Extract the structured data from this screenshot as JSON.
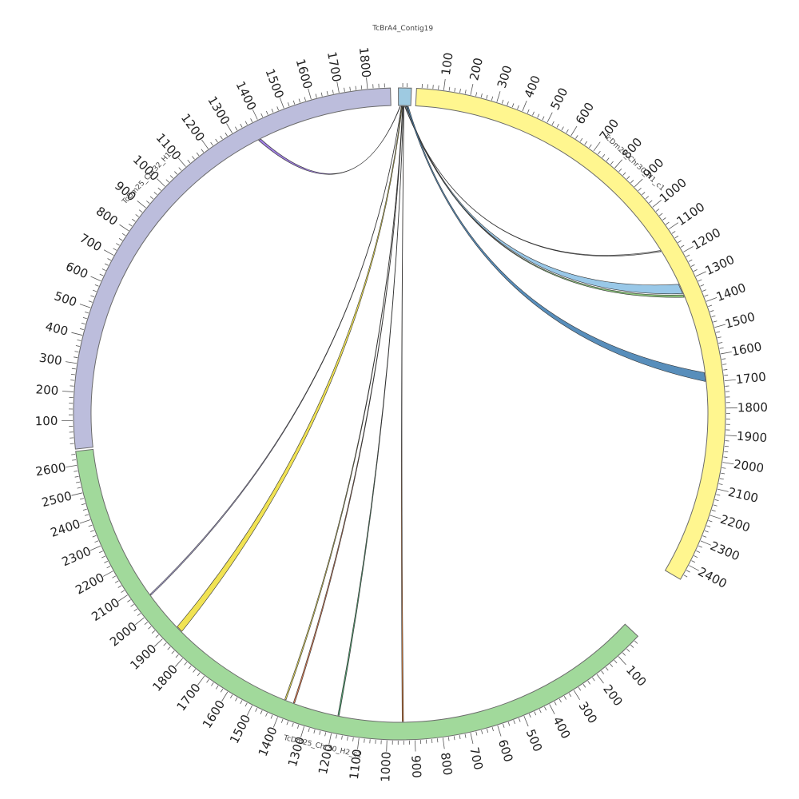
{
  "chart_data": {
    "type": "chord",
    "chromosomes": [
      {
        "id": "contig19",
        "name": "TcBrA4_Contig19",
        "length": 60,
        "start_deg": 359.8,
        "end_deg": 362.1,
        "color": "#9ecae1",
        "tick_step": 100,
        "labels": []
      },
      {
        "id": "h1c1",
        "name": "TcDm25_Chr30_H1_c1",
        "length": 2460,
        "start_deg": 363.0,
        "end_deg": 480.5,
        "color": "#fff68f",
        "tick_step": 100,
        "labels": [
          "100",
          "200",
          "300",
          "400",
          "500",
          "600",
          "700",
          "800",
          "900",
          "1000",
          "1100",
          "1200",
          "1300",
          "1400",
          "1500",
          "1600",
          "1700",
          "1800",
          "1900",
          "2000",
          "2100",
          "2200",
          "2300",
          "2400"
        ]
      },
      {
        "id": "h2c1",
        "name": "TcDm25_Chr30_H2_c1",
        "length": 2650,
        "start_deg": 493.0,
        "end_deg": 623.4,
        "color": "#a1d99b",
        "tick_step": 100,
        "labels": [
          "100",
          "200",
          "300",
          "400",
          "500",
          "600",
          "700",
          "800",
          "900",
          "1000",
          "1100",
          "1200",
          "1300",
          "1400",
          "1500",
          "1600",
          "1700",
          "1800",
          "1900",
          "2000",
          "2100",
          "2200",
          "2300",
          "2400",
          "2500",
          "2600"
        ]
      },
      {
        "id": "chr32",
        "name": "TcDm25_Chr32_H1",
        "length": 1880,
        "start_deg": 623.8,
        "end_deg": 718.4,
        "color": "#bcbddc",
        "tick_step": 100,
        "labels": [
          "100",
          "200",
          "300",
          "400",
          "500",
          "600",
          "700",
          "800",
          "900",
          "1000",
          "1100",
          "1200",
          "1300",
          "1400",
          "1500",
          "1600",
          "1700",
          "1800"
        ]
      }
    ],
    "links": [
      {
        "source": "contig19",
        "s_pos": [
          8,
          10
        ],
        "target": "chr32",
        "t_pos": [
          1370,
          1380
        ],
        "color": "#9370db"
      },
      {
        "source": "contig19",
        "s_pos": [
          30,
          31
        ],
        "target": "h1c1",
        "t_pos": [
          1150,
          1155
        ],
        "color": "#a9a9a9"
      },
      {
        "source": "contig19",
        "s_pos": [
          33,
          38
        ],
        "target": "h1c1",
        "t_pos": [
          1300,
          1340
        ],
        "color": "#8ec2e6"
      },
      {
        "source": "contig19",
        "s_pos": [
          38,
          40
        ],
        "target": "h1c1",
        "t_pos": [
          1345,
          1355
        ],
        "color": "#7fbf6e"
      },
      {
        "source": "contig19",
        "s_pos": [
          42,
          48
        ],
        "target": "h1c1",
        "t_pos": [
          1660,
          1695
        ],
        "color": "#4682b4"
      },
      {
        "source": "contig19",
        "s_pos": [
          14,
          15
        ],
        "target": "h2c1",
        "t_pos": [
          2050,
          2055
        ],
        "color": "#b0a8e0"
      },
      {
        "source": "contig19",
        "s_pos": [
          16,
          19
        ],
        "target": "h2c1",
        "t_pos": [
          1870,
          1895
        ],
        "color": "#f0e040"
      },
      {
        "source": "contig19",
        "s_pos": [
          20,
          21
        ],
        "target": "h2c1",
        "t_pos": [
          1395,
          1400
        ],
        "color": "#e6d84a"
      },
      {
        "source": "contig19",
        "s_pos": [
          21,
          22
        ],
        "target": "h2c1",
        "t_pos": [
          1360,
          1365
        ],
        "color": "#e07040"
      },
      {
        "source": "contig19",
        "s_pos": [
          24,
          25
        ],
        "target": "h2c1",
        "t_pos": [
          1185,
          1190
        ],
        "color": "#3a9a60"
      },
      {
        "source": "contig19",
        "s_pos": [
          26,
          27
        ],
        "target": "h2c1",
        "t_pos": [
          940,
          945
        ],
        "color": "#d2691e"
      }
    ]
  }
}
